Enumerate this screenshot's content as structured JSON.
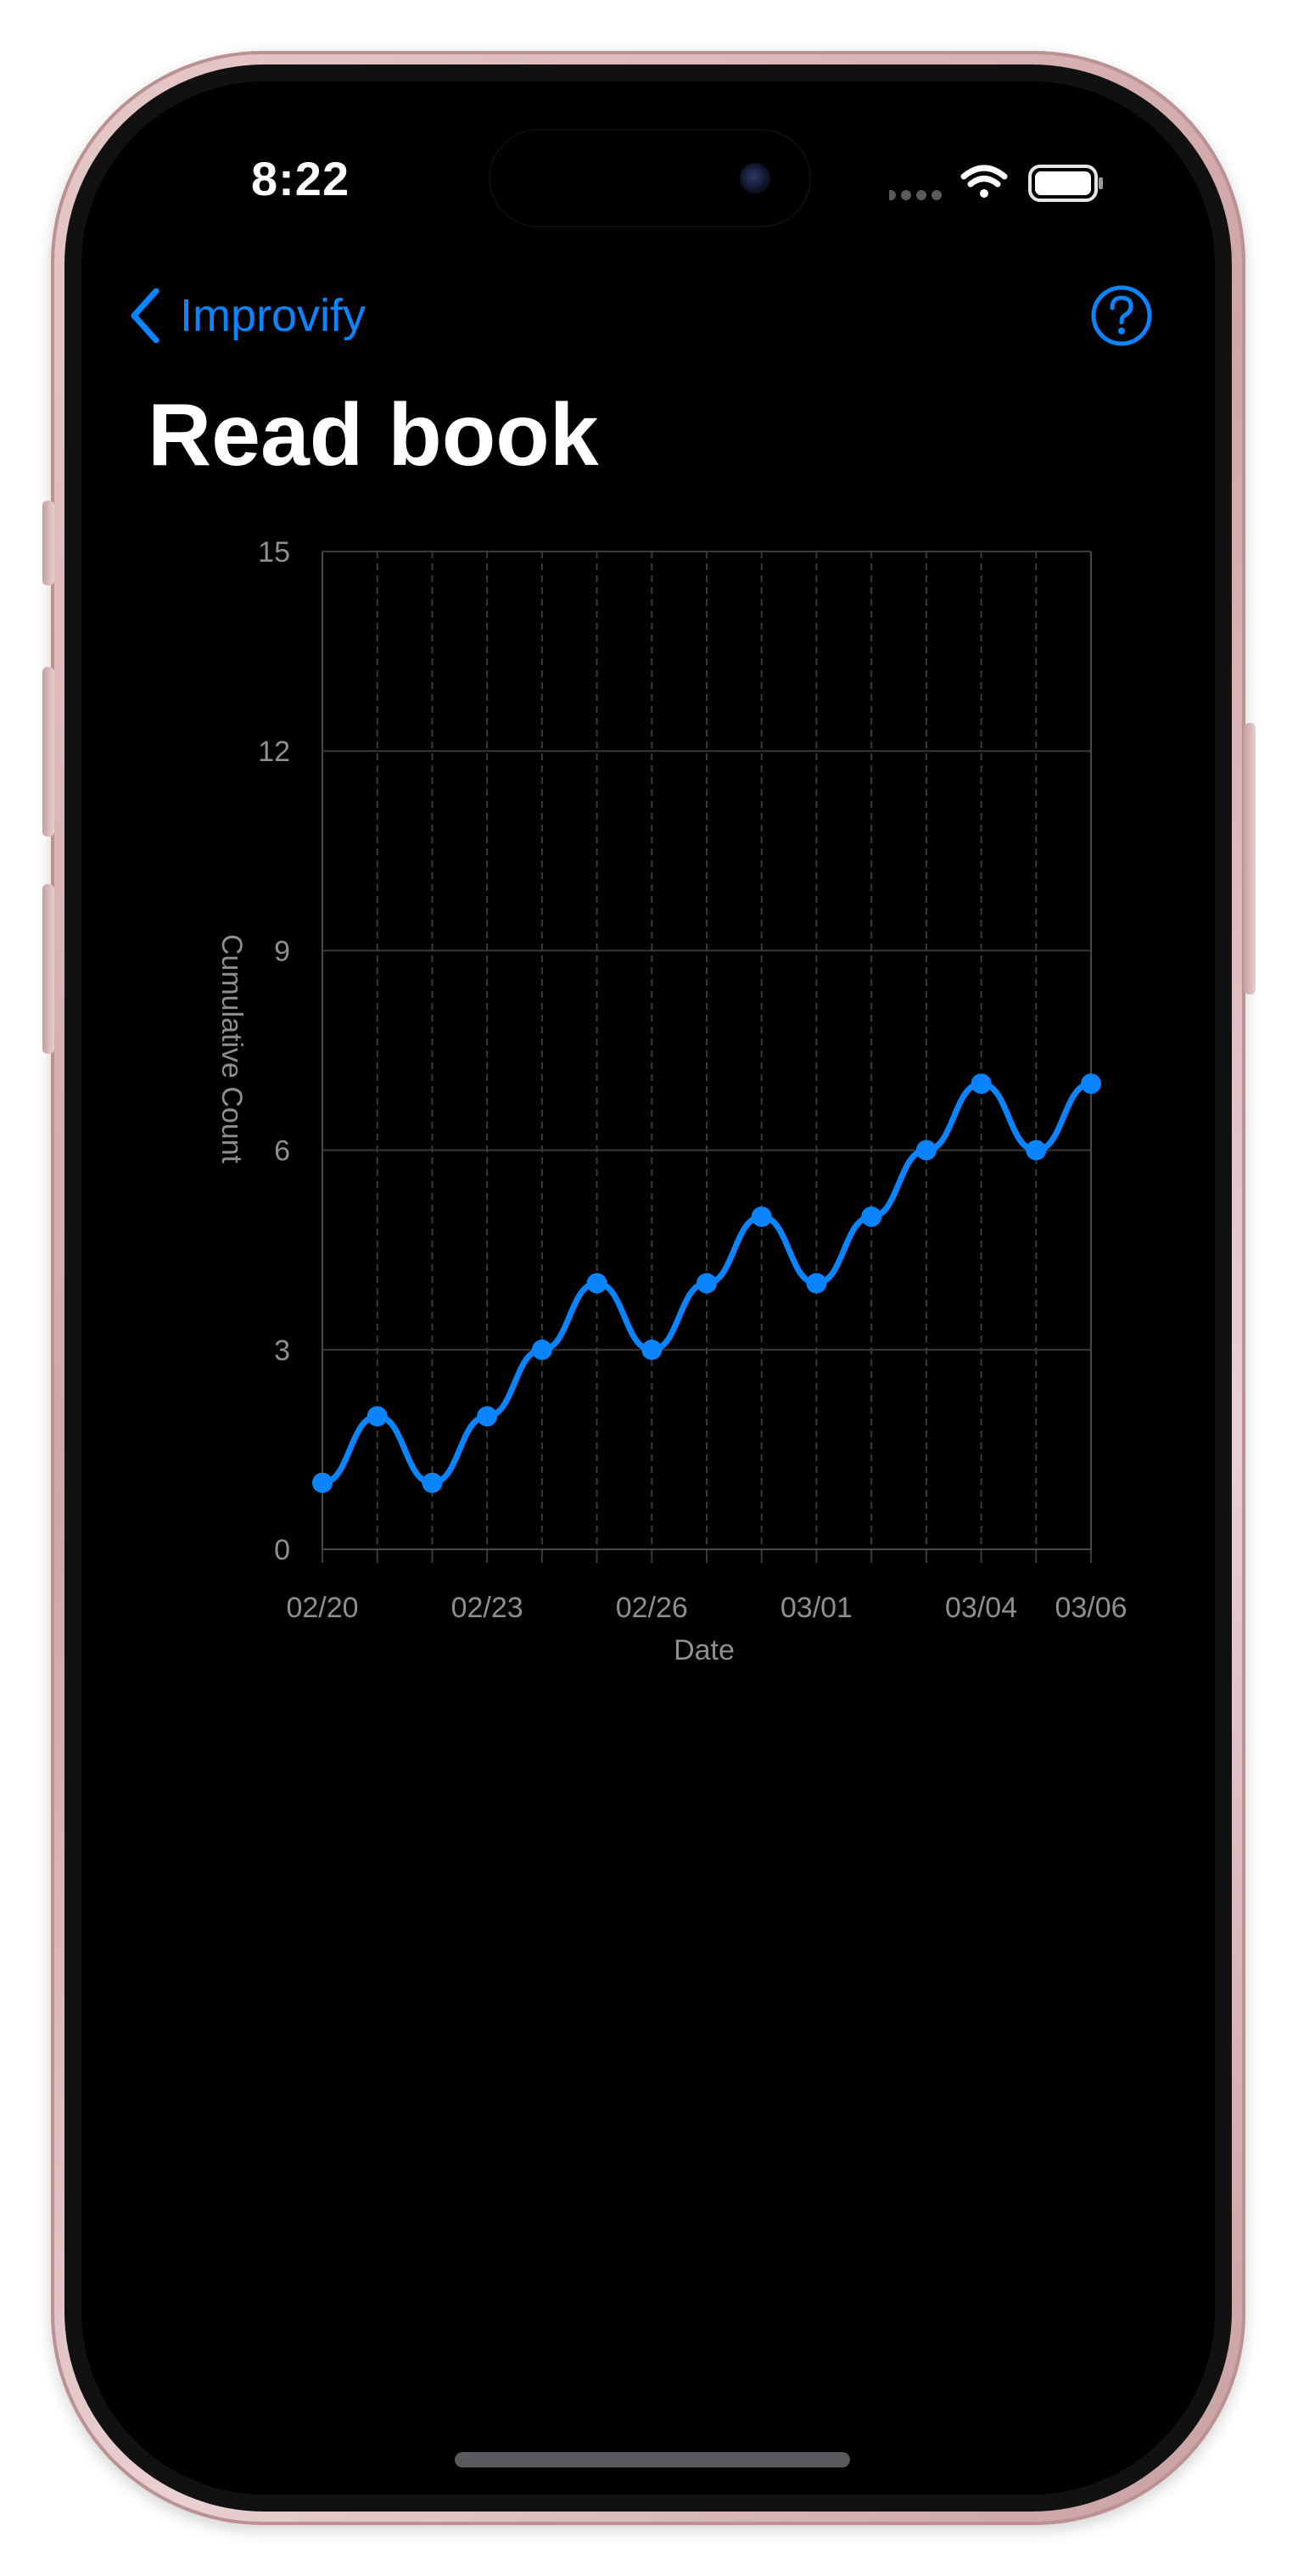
{
  "status_bar": {
    "time": "8:22",
    "icons": [
      "cellular-dots-icon",
      "wifi-icon",
      "battery-icon"
    ]
  },
  "nav": {
    "back_label": "Improvify",
    "back_icon": "chevron-left-icon",
    "help_icon": "question-circle-icon"
  },
  "page": {
    "title": "Read book"
  },
  "colors": {
    "accent": "#0a84ff",
    "background": "#000000",
    "grid": "#3a3a3c",
    "axis_text": "#8e8e93"
  },
  "chart_data": {
    "type": "line",
    "title": "",
    "xlabel": "Date",
    "ylabel": "Cumulative Count",
    "x": [
      "02/20",
      "02/21",
      "02/22",
      "02/23",
      "02/24",
      "02/25",
      "02/26",
      "02/27",
      "02/28",
      "03/01",
      "03/02",
      "03/03",
      "03/04",
      "03/05",
      "03/06"
    ],
    "x_tick_labels": [
      "02/20",
      "02/23",
      "02/26",
      "03/01",
      "03/04",
      "03/06"
    ],
    "series": [
      {
        "values": [
          1,
          2,
          1,
          2,
          3,
          4,
          3,
          4,
          5,
          4,
          5,
          6,
          7,
          6,
          7
        ]
      }
    ],
    "ylim": [
      0,
      15
    ],
    "yticks": [
      0,
      3,
      6,
      9,
      12,
      15
    ],
    "grid": true,
    "legend": "none"
  }
}
